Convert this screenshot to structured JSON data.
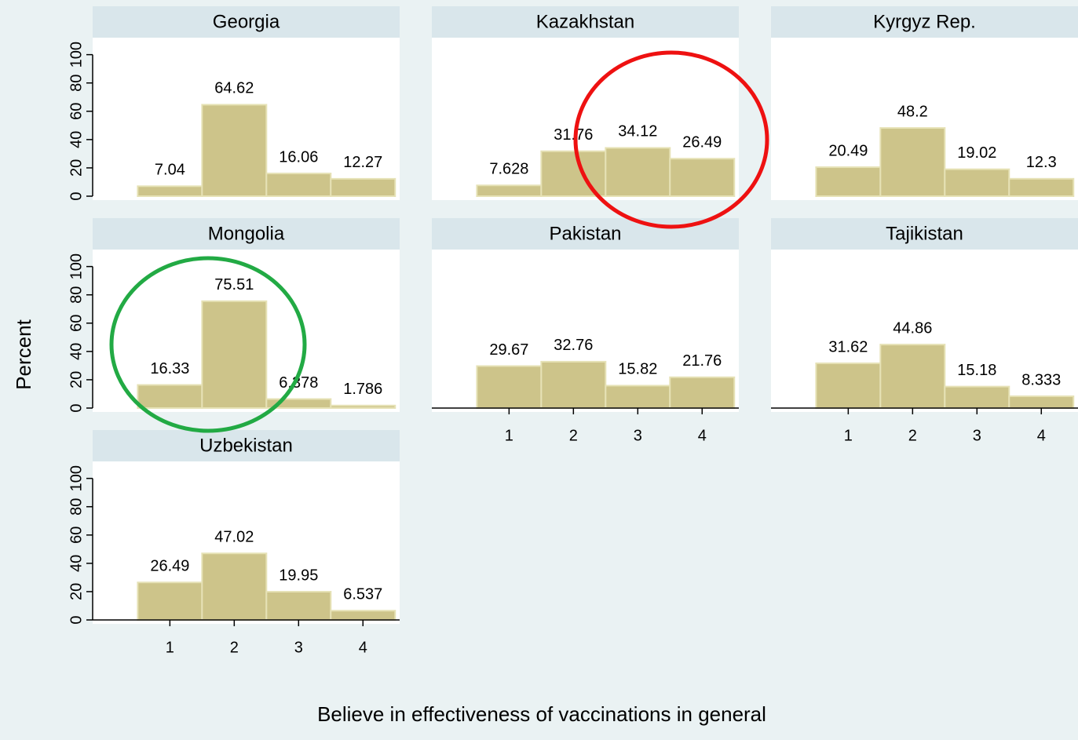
{
  "y_label": "Percent",
  "x_label": "Believe in effectiveness of vaccinations in general",
  "chart_data": [
    {
      "type": "histogram",
      "title": "Georgia",
      "bins": [
        0.5,
        1.5,
        2.5,
        3.5,
        4.5
      ],
      "values": [
        7.04,
        64.62,
        16.06,
        12.27
      ],
      "color": "#cdc48a",
      "xlim": [
        -0.2,
        4.57
      ],
      "ylim": [
        0,
        112
      ],
      "yticks": [
        0,
        20,
        40,
        60,
        80,
        100
      ]
    },
    {
      "type": "histogram",
      "title": "Kazakhstan",
      "bins": [
        0.5,
        1.5,
        2.5,
        3.5,
        4.5
      ],
      "values": [
        7.628,
        31.76,
        34.12,
        26.49
      ],
      "color": "#cdc48a",
      "xlim": [
        -0.2,
        4.57
      ],
      "ylim": [
        0,
        112
      ]
    },
    {
      "type": "histogram",
      "title": "Kyrgyz Rep.",
      "bins": [
        0.5,
        1.5,
        2.5,
        3.5,
        4.5
      ],
      "values": [
        20.49,
        48.2,
        19.02,
        12.3
      ],
      "color": "#cdc48a",
      "xlim": [
        -0.2,
        4.57
      ],
      "ylim": [
        0,
        112
      ]
    },
    {
      "type": "histogram",
      "title": "Mongolia",
      "bins": [
        0.5,
        1.5,
        2.5,
        3.5,
        4.5
      ],
      "values": [
        16.33,
        75.51,
        6.378,
        1.786
      ],
      "color": "#cdc48a",
      "xlim": [
        -0.2,
        4.57
      ],
      "ylim": [
        0,
        112
      ],
      "yticks": [
        0,
        20,
        40,
        60,
        80,
        100
      ]
    },
    {
      "type": "histogram",
      "title": "Pakistan",
      "bins": [
        0.5,
        1.5,
        2.5,
        3.5,
        4.5
      ],
      "values": [
        29.67,
        32.76,
        15.82,
        21.76
      ],
      "color": "#cdc48a",
      "xlim": [
        -0.2,
        4.57
      ],
      "ylim": [
        0,
        112
      ],
      "xticks": [
        1,
        2,
        3,
        4
      ]
    },
    {
      "type": "histogram",
      "title": "Tajikistan",
      "bins": [
        0.5,
        1.5,
        2.5,
        3.5,
        4.5
      ],
      "values": [
        31.62,
        44.86,
        15.18,
        8.333
      ],
      "color": "#cdc48a",
      "xlim": [
        -0.2,
        4.57
      ],
      "ylim": [
        0,
        112
      ],
      "xticks": [
        1,
        2,
        3,
        4
      ]
    },
    {
      "type": "histogram",
      "title": "Uzbekistan",
      "bins": [
        0.5,
        1.5,
        2.5,
        3.5,
        4.5
      ],
      "values": [
        26.49,
        47.02,
        19.95,
        6.537
      ],
      "color": "#cdc48a",
      "xlim": [
        -0.2,
        4.57
      ],
      "ylim": [
        0,
        112
      ],
      "yticks": [
        0,
        20,
        40,
        60,
        80,
        100
      ],
      "xticks": [
        1,
        2,
        3,
        4
      ]
    }
  ]
}
